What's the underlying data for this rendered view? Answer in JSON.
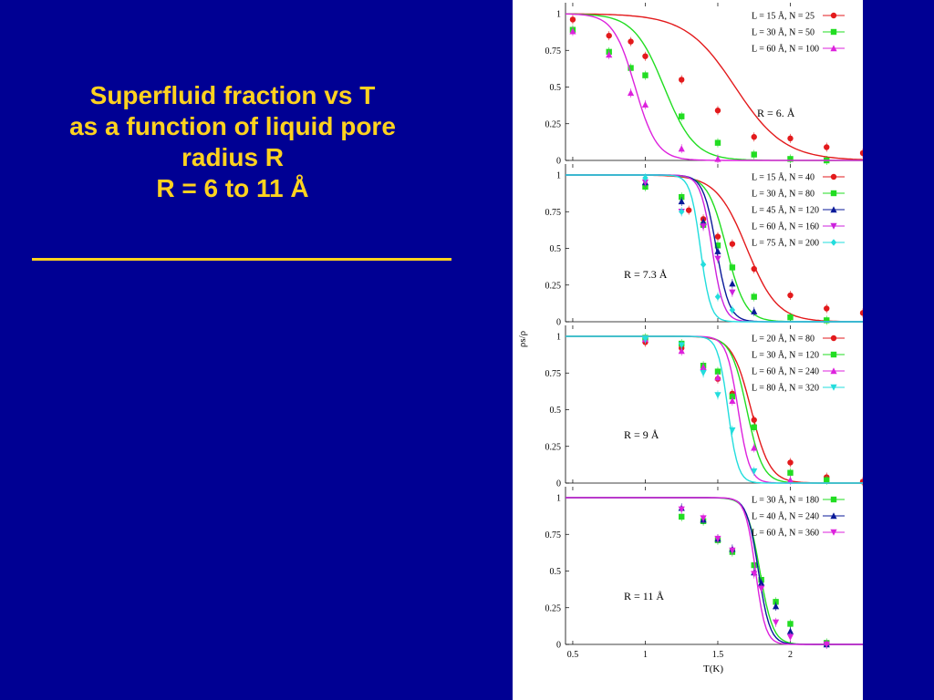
{
  "slide": {
    "title_lines": [
      "Superfluid fraction  vs T",
      "as a function of liquid pore",
      "radius R",
      "R = 6 to 11 Å"
    ],
    "colors": {
      "background": "#000093",
      "title": "#FFD21F",
      "panel": "#ffffff"
    }
  },
  "chart_data": [
    {
      "type": "line",
      "annotation": "R = 6. Å",
      "xlabel": "T(K)",
      "ylabel": "ρs/ρ",
      "xlim": [
        0.45,
        2.5
      ],
      "ylim": [
        0,
        1.0
      ],
      "yticks": [
        0,
        0.25,
        0.5,
        0.75,
        1
      ],
      "legend_position": "top-right",
      "series": [
        {
          "name": "L = 15 Å, N = 25",
          "color": "#e31a1c",
          "marker": "circle",
          "x": [
            0.5,
            0.75,
            0.9,
            1.0,
            1.25,
            1.5,
            1.75,
            2.0,
            2.25,
            2.5
          ],
          "y": [
            0.96,
            0.85,
            0.81,
            0.71,
            0.55,
            0.34,
            0.16,
            0.15,
            0.09,
            0.05
          ],
          "fit": {
            "mid": 1.62,
            "width": 0.34
          }
        },
        {
          "name": "L = 30 Å, N = 50",
          "color": "#22dd22",
          "marker": "square",
          "x": [
            0.5,
            0.75,
            0.9,
            1.0,
            1.25,
            1.5,
            1.75,
            2.0,
            2.25
          ],
          "y": [
            0.89,
            0.74,
            0.63,
            0.58,
            0.3,
            0.12,
            0.04,
            0.01,
            0.0
          ],
          "fit": {
            "mid": 1.13,
            "width": 0.21
          }
        },
        {
          "name": "L = 60 Å, N = 100",
          "color": "#dd22dd",
          "marker": "triangle-up",
          "x": [
            0.5,
            0.75,
            0.9,
            1.0,
            1.25,
            1.5
          ],
          "y": [
            0.88,
            0.72,
            0.46,
            0.38,
            0.08,
            0.01
          ],
          "fit": {
            "mid": 0.93,
            "width": 0.15
          }
        }
      ]
    },
    {
      "type": "line",
      "annotation": "R = 7.3 Å",
      "xlabel": "T(K)",
      "ylabel": "ρs/ρ",
      "xlim": [
        0.45,
        2.5
      ],
      "ylim": [
        0,
        1.0
      ],
      "yticks": [
        0,
        0.25,
        0.5,
        0.75,
        1
      ],
      "legend_position": "top-right",
      "series": [
        {
          "name": "L = 15 Å, N = 40",
          "color": "#e31a1c",
          "marker": "circle",
          "x": [
            1.3,
            1.4,
            1.5,
            1.6,
            1.75,
            2.0,
            2.25,
            2.5
          ],
          "y": [
            0.76,
            0.7,
            0.58,
            0.53,
            0.36,
            0.18,
            0.09,
            0.06
          ],
          "fit": {
            "mid": 1.7,
            "width": 0.21
          }
        },
        {
          "name": "L = 30 Å, N = 80",
          "color": "#22dd22",
          "marker": "square",
          "x": [
            1.0,
            1.25,
            1.4,
            1.5,
            1.6,
            1.75,
            2.0,
            2.25
          ],
          "y": [
            0.92,
            0.85,
            0.66,
            0.52,
            0.37,
            0.17,
            0.03,
            0.01
          ],
          "fit": {
            "mid": 1.56,
            "width": 0.13
          }
        },
        {
          "name": "L = 45 Å, N = 120",
          "color": "#0a1a99",
          "marker": "triangle-up",
          "x": [
            1.0,
            1.25,
            1.4,
            1.5,
            1.6,
            1.75
          ],
          "y": [
            0.95,
            0.82,
            0.68,
            0.48,
            0.26,
            0.07
          ],
          "fit": {
            "mid": 1.49,
            "width": 0.09
          }
        },
        {
          "name": "L = 60 Å, N = 160",
          "color": "#cc22dd",
          "marker": "triangle-down",
          "x": [
            1.0,
            1.25,
            1.4,
            1.5,
            1.6
          ],
          "y": [
            0.95,
            0.75,
            0.65,
            0.43,
            0.2
          ],
          "fit": {
            "mid": 1.46,
            "width": 0.08
          }
        },
        {
          "name": "L = 75 Å, N = 200",
          "color": "#22dddd",
          "marker": "diamond",
          "x": [
            1.0,
            1.25,
            1.4,
            1.5,
            1.6
          ],
          "y": [
            0.98,
            0.75,
            0.39,
            0.17,
            0.08
          ],
          "fit": {
            "mid": 1.38,
            "width": 0.07
          }
        }
      ]
    },
    {
      "type": "line",
      "annotation": "R = 9 Å",
      "xlabel": "T(K)",
      "ylabel": "ρs/ρ",
      "xlim": [
        0.45,
        2.5
      ],
      "ylim": [
        0,
        1.0
      ],
      "yticks": [
        0,
        0.25,
        0.5,
        0.75,
        1
      ],
      "legend_position": "top-right",
      "series": [
        {
          "name": "L = 20 Å, N = 80",
          "color": "#e31a1c",
          "marker": "circle",
          "x": [
            1.0,
            1.25,
            1.5,
            1.6,
            1.75,
            2.0,
            2.25,
            2.5
          ],
          "y": [
            0.96,
            0.92,
            0.71,
            0.61,
            0.43,
            0.14,
            0.04,
            0.01
          ],
          "fit": {
            "mid": 1.73,
            "width": 0.13
          }
        },
        {
          "name": "L = 30 Å, N = 120",
          "color": "#22dd22",
          "marker": "square",
          "x": [
            1.0,
            1.25,
            1.4,
            1.5,
            1.6,
            1.75,
            2.0,
            2.25
          ],
          "y": [
            0.99,
            0.95,
            0.8,
            0.76,
            0.59,
            0.38,
            0.07,
            0.02
          ],
          "fit": {
            "mid": 1.7,
            "width": 0.11
          }
        },
        {
          "name": "L = 60 Å, N = 240",
          "color": "#dd22dd",
          "marker": "triangle-up",
          "x": [
            1.0,
            1.25,
            1.4,
            1.5,
            1.6,
            1.75,
            2.0
          ],
          "y": [
            0.98,
            0.9,
            0.79,
            0.72,
            0.56,
            0.24,
            0.02
          ],
          "fit": {
            "mid": 1.64,
            "width": 0.08
          }
        },
        {
          "name": "L = 80 Å, N = 320",
          "color": "#22dddd",
          "marker": "triangle-down",
          "x": [
            1.0,
            1.25,
            1.4,
            1.5,
            1.6,
            1.75
          ],
          "y": [
            0.98,
            0.94,
            0.75,
            0.6,
            0.36,
            0.08
          ],
          "fit": {
            "mid": 1.57,
            "width": 0.07
          }
        }
      ]
    },
    {
      "type": "line",
      "annotation": "R = 11 Å",
      "xlabel": "T(K)",
      "ylabel": "ρs/ρ",
      "xlim": [
        0.45,
        2.5
      ],
      "ylim": [
        0,
        1.0
      ],
      "yticks": [
        0,
        0.25,
        0.5,
        0.75,
        1
      ],
      "xticks": [
        0.5,
        1,
        1.5,
        2
      ],
      "legend_position": "top-right",
      "series": [
        {
          "name": "L = 30 Å, N = 180",
          "color": "#22dd22",
          "marker": "square",
          "x": [
            1.25,
            1.4,
            1.5,
            1.6,
            1.75,
            1.8,
            1.9,
            2.0,
            2.25
          ],
          "y": [
            0.87,
            0.84,
            0.71,
            0.63,
            0.54,
            0.44,
            0.29,
            0.14,
            0.01
          ],
          "fit": {
            "mid": 1.79,
            "width": 0.09
          }
        },
        {
          "name": "L = 40 Å, N = 240",
          "color": "#0a1a99",
          "marker": "triangle-up",
          "x": [
            1.25,
            1.4,
            1.5,
            1.6,
            1.75,
            1.8,
            1.9,
            2.0,
            2.25
          ],
          "y": [
            0.93,
            0.85,
            0.72,
            0.65,
            0.49,
            0.42,
            0.26,
            0.09,
            0.0
          ],
          "fit": {
            "mid": 1.78,
            "width": 0.08
          }
        },
        {
          "name": "L = 60 Å, N = 360",
          "color": "#dd22dd",
          "marker": "triangle-down",
          "x": [
            1.25,
            1.4,
            1.5,
            1.6,
            1.75,
            1.8,
            1.9,
            2.0,
            2.25
          ],
          "y": [
            0.92,
            0.86,
            0.72,
            0.64,
            0.48,
            0.38,
            0.15,
            0.05,
            0.0
          ],
          "fit": {
            "mid": 1.76,
            "width": 0.07
          }
        }
      ]
    }
  ]
}
